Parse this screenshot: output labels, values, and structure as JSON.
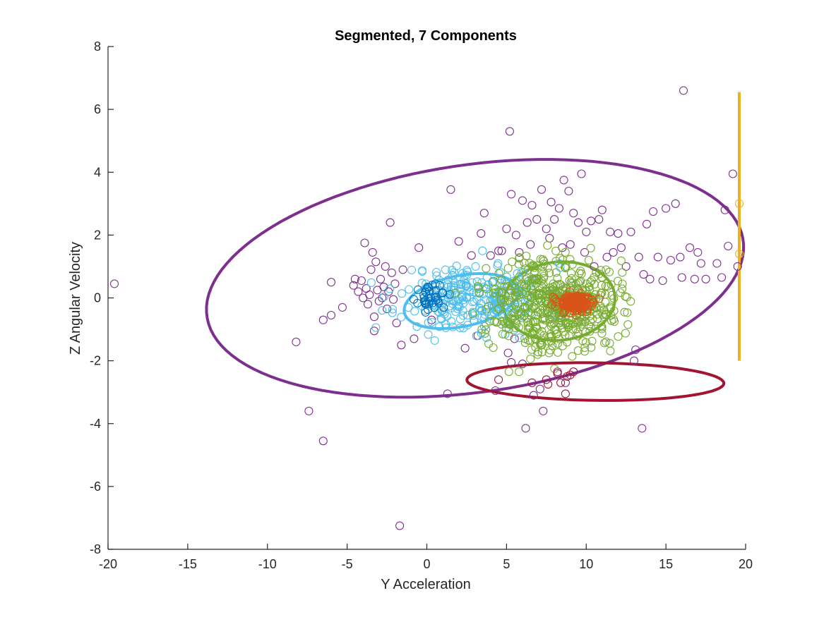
{
  "chart_data": {
    "type": "scatter",
    "title": "Segmented, 7 Components",
    "xlabel": "Y Acceleration",
    "ylabel": "Z Angular Velocity",
    "xlim": [
      -20,
      20
    ],
    "ylim": [
      -8,
      8
    ],
    "xticks": [
      "-20",
      "-15",
      "-10",
      "-5",
      "0",
      "5",
      "10",
      "15",
      "20"
    ],
    "yticks": [
      "-8",
      "-6",
      "-4",
      "-2",
      "0",
      "2",
      "4",
      "6",
      "8"
    ],
    "grid": false,
    "colors": {
      "purple": "#7E2F8E",
      "cyan": "#4DBEEE",
      "blue": "#0072BD",
      "green": "#77AC30",
      "orange": "#D95319",
      "red": "#A2142F",
      "yellow": "#EDB120"
    },
    "series": [
      {
        "color": "#7E2F8E",
        "points": [
          [
            -19.6,
            0.45
          ],
          [
            -8.2,
            -1.4
          ],
          [
            -7.4,
            -3.6
          ],
          [
            -6.5,
            -4.55
          ],
          [
            -6.5,
            -0.7
          ],
          [
            -6,
            0.5
          ],
          [
            -6,
            -0.55
          ],
          [
            -5.3,
            -0.3
          ],
          [
            -4.6,
            0.4
          ],
          [
            -4.5,
            0.6
          ],
          [
            -4.3,
            0.2
          ],
          [
            -4.1,
            0.55
          ],
          [
            -4,
            0.0
          ],
          [
            -3.9,
            1.75
          ],
          [
            -3.8,
            0.3
          ],
          [
            -3.7,
            -0.2
          ],
          [
            -3.6,
            0.1
          ],
          [
            -3.5,
            0.9
          ],
          [
            -3.4,
            1.45
          ],
          [
            -3.3,
            -0.6
          ],
          [
            -3.3,
            -1.05
          ],
          [
            -3.2,
            1.15
          ],
          [
            -3.1,
            0.25
          ],
          [
            -3,
            -0.1
          ],
          [
            -2.9,
            0.6
          ],
          [
            -2.8,
            0.0
          ],
          [
            -2.7,
            0.35
          ],
          [
            -2.6,
            1.0
          ],
          [
            -2.5,
            -0.35
          ],
          [
            -2.4,
            0.2
          ],
          [
            -2.3,
            2.4
          ],
          [
            -2.2,
            0.8
          ],
          [
            -2.1,
            -0.05
          ],
          [
            -2,
            0.45
          ],
          [
            -1.9,
            -0.8
          ],
          [
            -1.7,
            -7.25
          ],
          [
            -1.6,
            -1.5
          ],
          [
            -1.5,
            0.9
          ],
          [
            -0.8,
            -1.3
          ],
          [
            -0.5,
            1.6
          ],
          [
            0.3,
            -0.7
          ],
          [
            1.3,
            -3.05
          ],
          [
            1.5,
            3.45
          ],
          [
            2,
            1.8
          ],
          [
            2.4,
            -1.6
          ],
          [
            2.8,
            1.35
          ],
          [
            3.2,
            -1.2
          ],
          [
            3.4,
            2.05
          ],
          [
            3.6,
            2.7
          ],
          [
            4,
            1.35
          ],
          [
            4.3,
            -2.95
          ],
          [
            4.5,
            1.5
          ],
          [
            4.7,
            1.5
          ],
          [
            5,
            2.2
          ],
          [
            5.1,
            -1.75
          ],
          [
            5.2,
            5.3
          ],
          [
            5.3,
            3.3
          ],
          [
            5.3,
            -2.05
          ],
          [
            5.5,
            -1.3
          ],
          [
            5.6,
            2.0
          ],
          [
            5.8,
            1.45
          ],
          [
            6,
            3.1
          ],
          [
            6,
            -2.1
          ],
          [
            6.2,
            -4.15
          ],
          [
            6.3,
            2.4
          ],
          [
            6.5,
            1.7
          ],
          [
            6.6,
            2.95
          ],
          [
            6.7,
            -3.1
          ],
          [
            6.9,
            2.5
          ],
          [
            7.1,
            -2.9
          ],
          [
            7.2,
            3.45
          ],
          [
            7.3,
            -3.6
          ],
          [
            7.5,
            2.2
          ],
          [
            7.7,
            1.9
          ],
          [
            7.8,
            3.05
          ],
          [
            8,
            2.5
          ],
          [
            8.2,
            -2.35
          ],
          [
            8.3,
            2.85
          ],
          [
            8.5,
            1.6
          ],
          [
            8.6,
            3.75
          ],
          [
            8.7,
            -2.7
          ],
          [
            8.9,
            3.4
          ],
          [
            9,
            1.7
          ],
          [
            9.2,
            2.7
          ],
          [
            9.5,
            2.4
          ],
          [
            9.7,
            3.95
          ],
          [
            9.9,
            1.45
          ],
          [
            10,
            2.1
          ],
          [
            10.3,
            2.45
          ],
          [
            10.5,
            1.0
          ],
          [
            10.8,
            2.5
          ],
          [
            11,
            2.8
          ],
          [
            11.3,
            1.3
          ],
          [
            11.5,
            2.1
          ],
          [
            11.7,
            1.45
          ],
          [
            12,
            2.05
          ],
          [
            12.2,
            1.6
          ],
          [
            12.5,
            1.0
          ],
          [
            12.8,
            2.1
          ],
          [
            13,
            -2.0
          ],
          [
            13.1,
            -1.65
          ],
          [
            13.3,
            1.3
          ],
          [
            13.5,
            -4.15
          ],
          [
            13.6,
            0.75
          ],
          [
            13.8,
            2.35
          ],
          [
            14,
            0.6
          ],
          [
            14.2,
            2.75
          ],
          [
            14.5,
            1.3
          ],
          [
            14.8,
            0.55
          ],
          [
            15,
            2.85
          ],
          [
            15.3,
            1.2
          ],
          [
            15.6,
            3.0
          ],
          [
            15.9,
            1.3
          ],
          [
            16,
            0.65
          ],
          [
            16.1,
            6.6
          ],
          [
            16.5,
            1.6
          ],
          [
            16.8,
            0.6
          ],
          [
            17,
            1.45
          ],
          [
            17.2,
            1.1
          ],
          [
            17.5,
            0.6
          ],
          [
            18.2,
            1.1
          ],
          [
            18.5,
            0.65
          ],
          [
            18.7,
            2.8
          ],
          [
            18.9,
            1.65
          ],
          [
            19.2,
            3.95
          ],
          [
            19.5,
            1.0
          ]
        ]
      },
      {
        "color": "#4DBEEE",
        "cluster": {
          "cx": 3.0,
          "cy": 0.0,
          "sx": 2.3,
          "sy": 0.55,
          "n": 260,
          "seed": 11
        }
      },
      {
        "color": "#0072BD",
        "cluster": {
          "cx": 0.4,
          "cy": 0.0,
          "sx": 0.45,
          "sy": 0.18,
          "n": 40,
          "seed": 23
        }
      },
      {
        "color": "#77AC30",
        "cluster": {
          "cx": 8.0,
          "cy": -0.15,
          "sx": 2.0,
          "sy": 0.75,
          "n": 520,
          "seed": 37
        }
      },
      {
        "color": "#D95319",
        "cluster": {
          "cx": 9.3,
          "cy": -0.15,
          "sx": 0.55,
          "sy": 0.14,
          "n": 160,
          "seed": 53
        }
      },
      {
        "color": "#A2142F",
        "points": [
          [
            4.5,
            -2.6
          ],
          [
            6.6,
            -2.7
          ],
          [
            7.5,
            -2.6
          ],
          [
            7.6,
            -2.75
          ],
          [
            8.2,
            -2.4
          ],
          [
            8.4,
            -2.7
          ],
          [
            8.8,
            -2.5
          ],
          [
            9.0,
            -2.45
          ],
          [
            9.2,
            -2.35
          ],
          [
            8.7,
            -3.05
          ]
        ]
      },
      {
        "color": "#EDB120",
        "points": [
          [
            19.6,
            3.0
          ],
          [
            19.6,
            1.4
          ]
        ]
      }
    ],
    "ellipses": [
      {
        "color": "#7E2F8E",
        "points": [
          [
            -13.7,
            0.1
          ],
          [
            5.3,
            4.4
          ],
          [
            19.7,
            1.1
          ],
          [
            0.8,
            -3.1
          ]
        ]
      },
      {
        "color": "#4DBEEE",
        "points": [
          [
            -1.2,
            -0.15
          ],
          [
            3.2,
            0.8
          ],
          [
            5.6,
            -0.1
          ],
          [
            1.0,
            -0.95
          ]
        ]
      },
      {
        "color": "#77AC30",
        "points": [
          [
            5.0,
            -0.1
          ],
          [
            8.2,
            1.1
          ],
          [
            12.0,
            0.0
          ],
          [
            8.0,
            -1.4
          ]
        ]
      },
      {
        "color": "#D95319",
        "points": [
          [
            8.1,
            -0.15
          ],
          [
            9.3,
            0.15
          ],
          [
            10.7,
            -0.15
          ],
          [
            9.3,
            -0.4
          ]
        ]
      },
      {
        "color": "#A2142F",
        "points": [
          [
            2.5,
            -2.65
          ],
          [
            10.2,
            -2.05
          ],
          [
            18.6,
            -2.7
          ],
          [
            11.0,
            -3.25
          ]
        ]
      },
      {
        "color": "#EDB120",
        "vertical": {
          "x": 19.6,
          "y1": -2.0,
          "y2": 6.55
        }
      }
    ]
  }
}
